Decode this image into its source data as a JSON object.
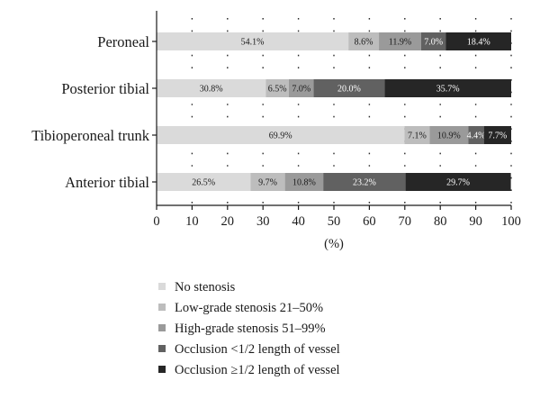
{
  "chart_data": {
    "type": "bar",
    "orientation": "horizontal",
    "stacked": true,
    "categories": [
      "Peroneal",
      "Posterior tibial",
      "Tibioperoneal trunk",
      "Anterior tibial"
    ],
    "series": [
      {
        "name": "No stenosis",
        "color": "#dadada",
        "values": [
          54.1,
          30.8,
          69.9,
          26.5
        ],
        "labels": [
          "54.1%",
          "30.8%",
          "69.9%",
          "26.5%"
        ]
      },
      {
        "name": "Low-grade stenosis 21–50%",
        "color": "#bdbdbd",
        "values": [
          8.6,
          6.5,
          7.1,
          9.7
        ],
        "labels": [
          "8.6%",
          "6.5%",
          "7.1%",
          "9.7%"
        ]
      },
      {
        "name": "High-grade stenosis 51–99%",
        "color": "#9a9a9a",
        "values": [
          11.9,
          7.0,
          10.9,
          10.8
        ],
        "labels": [
          "11.9%",
          "7.0%",
          "10.9%",
          "10.8%"
        ]
      },
      {
        "name": "Occlusion <1/2 length of vessel",
        "color": "#616161",
        "values": [
          7.0,
          20.0,
          4.4,
          23.2
        ],
        "labels": [
          "7.0%",
          "20.0%",
          "4.4%",
          "23.2%"
        ]
      },
      {
        "name": "Occlusion ≥1/2 length of vessel",
        "color": "#262626",
        "values": [
          18.4,
          35.7,
          7.7,
          29.7
        ],
        "labels": [
          "18.4%",
          "35.7%",
          "7.7%",
          "29.7%"
        ]
      }
    ],
    "xlabel": "(%)",
    "xlim": [
      0,
      100
    ],
    "xticks": [
      0,
      10,
      20,
      30,
      40,
      50,
      60,
      70,
      80,
      90,
      100
    ],
    "grid": "vertical dotted",
    "legend_position": "bottom"
  }
}
